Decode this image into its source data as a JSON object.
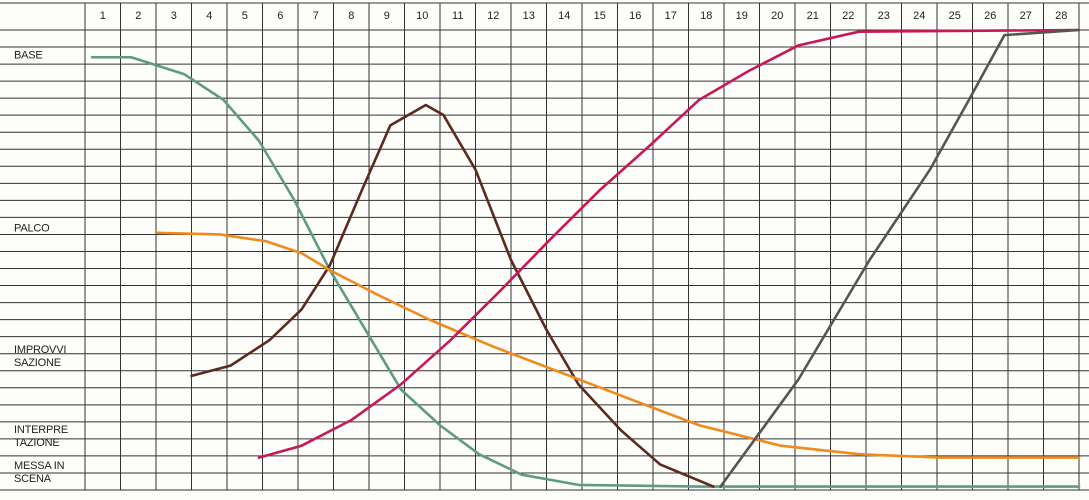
{
  "chart_data": {
    "type": "line",
    "xlim": [
      0.5,
      28.5
    ],
    "xticks": [
      1,
      2,
      3,
      4,
      5,
      6,
      7,
      8,
      9,
      10,
      11,
      12,
      13,
      14,
      15,
      16,
      17,
      18,
      19,
      20,
      21,
      22,
      23,
      24,
      25,
      26,
      27,
      28
    ],
    "ylim": [
      0,
      27
    ],
    "yticks": [
      {
        "value": 25.5,
        "label": "BASE"
      },
      {
        "value": 15.3,
        "label": "PALCO"
      },
      {
        "value": 7.8,
        "label": "IMPROVVI\nSAZIONE"
      },
      {
        "value": 3.1,
        "label": "INTERPRE\nTAZIONE"
      },
      {
        "value": 1.0,
        "label": "MESSA IN\nSCENA"
      }
    ],
    "grid": true,
    "series": [
      {
        "color": "#5f9a88",
        "x": [
          0.7,
          1.8,
          3.3,
          4.4,
          5.4,
          6.4,
          7.4,
          8.4,
          9.4,
          10.5,
          11.6,
          12.8,
          14.4,
          17.8,
          28.5
        ],
        "values": [
          25.4,
          25.4,
          24.4,
          22.9,
          20.5,
          17,
          12.9,
          9.4,
          5.9,
          3.8,
          2.1,
          0.9,
          0.3,
          0.2,
          0.2
        ]
      },
      {
        "color": "#5a2a1e",
        "x": [
          3.5,
          4.6,
          5.7,
          6.6,
          7.4,
          8.3,
          9.1,
          10.1,
          10.6,
          11.5,
          12.5,
          13.5,
          14.4,
          15.6,
          16.7,
          18.2
        ],
        "values": [
          6.7,
          7.3,
          8.8,
          10.6,
          13.2,
          17.6,
          21.4,
          22.6,
          22,
          18.8,
          13.5,
          9.4,
          6.2,
          3.5,
          1.5,
          0.2
        ]
      },
      {
        "color": "#f08a1c",
        "x": [
          2.5,
          4.3,
          5.6,
          6.6,
          7.4,
          8.8,
          10.2,
          11.9,
          13.9,
          15.9,
          17.8,
          20.1,
          22.3,
          24.6,
          28.5
        ],
        "values": [
          15.1,
          15,
          14.6,
          13.9,
          12.9,
          11.4,
          10,
          8.5,
          6.9,
          5.3,
          3.8,
          2.6,
          2.1,
          1.9,
          1.9
        ]
      },
      {
        "color": "#c8185c",
        "x": [
          5.4,
          6.6,
          8,
          9.4,
          10.8,
          12.2,
          13.6,
          15,
          16.4,
          17.8,
          19.2,
          20.6,
          22.3,
          28.5
        ],
        "values": [
          1.9,
          2.6,
          4.1,
          6.2,
          8.8,
          11.7,
          14.7,
          17.6,
          20.2,
          22.9,
          24.6,
          26.1,
          26.9,
          27
        ]
      },
      {
        "color": "#555555",
        "x": [
          18.4,
          20.6,
          22.6,
          24.3,
          25.4,
          26.4,
          28.5
        ],
        "values": [
          0.2,
          6.5,
          13.5,
          18.8,
          22.9,
          26.7,
          27
        ]
      }
    ]
  }
}
